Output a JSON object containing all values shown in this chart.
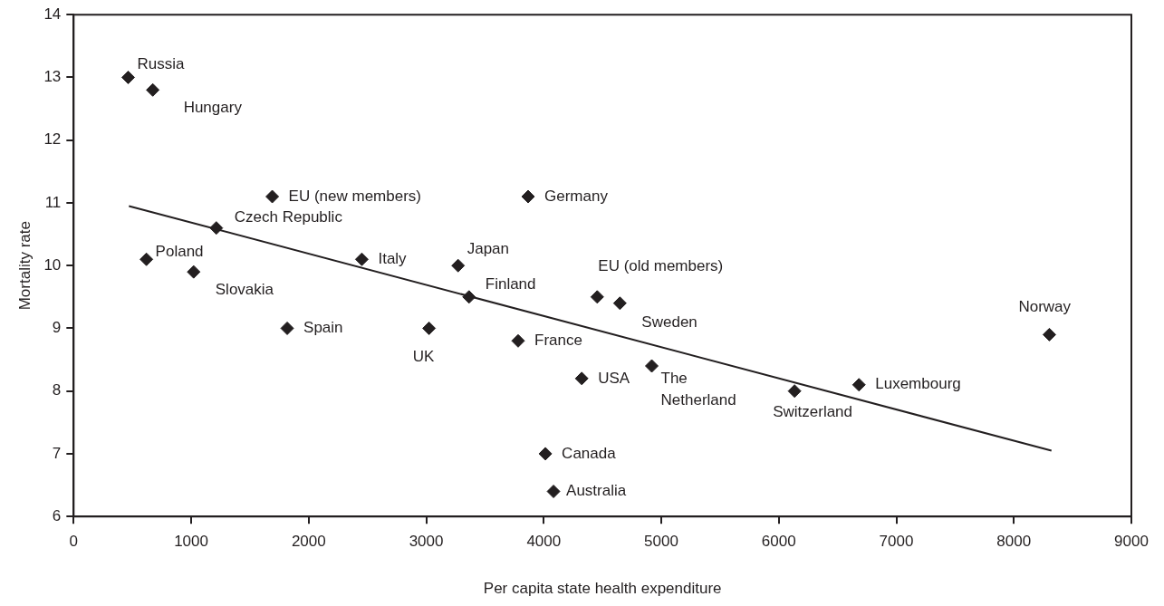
{
  "chart_data": {
    "type": "scatter",
    "xlabel": "Per capita state health expenditure",
    "ylabel": "Mortality rate",
    "xlim": [
      0,
      9000
    ],
    "xticks": [
      0,
      1000,
      2000,
      3000,
      4000,
      5000,
      6000,
      7000,
      8000,
      9000
    ],
    "ylim": [
      6,
      14
    ],
    "yticks": [
      6,
      7,
      8,
      9,
      10,
      11,
      12,
      13,
      14
    ],
    "grid": false,
    "legend": false,
    "series": [
      {
        "color": "#231f20",
        "marker": "diamond",
        "x": [
          464,
          673,
          1690,
          1214,
          619,
          1021,
          1817,
          2452,
          3867,
          3271,
          3364,
          3024,
          3782,
          4455,
          4648,
          4323,
          4919,
          4014,
          4083,
          6134,
          6682,
          8302
        ],
        "values": [
          13.0,
          12.8,
          11.1,
          10.6,
          10.1,
          9.9,
          9.0,
          10.1,
          11.1,
          10.0,
          9.5,
          9.0,
          8.8,
          9.5,
          9.4,
          8.2,
          8.4,
          7.0,
          6.4,
          8.0,
          8.1,
          8.9
        ]
      },
      {
        "type": "line",
        "color": "#231f20",
        "x": [
          470,
          8320
        ],
        "values": [
          10.95,
          7.05
        ]
      }
    ],
    "annotations": [
      {
        "text": "Russia",
        "x": 464,
        "y": 13.0
      },
      {
        "text": "Hungary",
        "x": 673,
        "y": 12.8
      },
      {
        "text": "EU (new members)",
        "x": 1690,
        "y": 11.1
      },
      {
        "text": "Czech Republic",
        "x": 1214,
        "y": 10.6
      },
      {
        "text": "Poland",
        "x": 619,
        "y": 10.1
      },
      {
        "text": "Slovakia",
        "x": 1021,
        "y": 9.9
      },
      {
        "text": "Spain",
        "x": 1817,
        "y": 9.0
      },
      {
        "text": "Italy",
        "x": 2452,
        "y": 10.1
      },
      {
        "text": "Germany",
        "x": 3867,
        "y": 11.1
      },
      {
        "text": "Japan",
        "x": 3271,
        "y": 10.0
      },
      {
        "text": "Finland",
        "x": 3364,
        "y": 9.5
      },
      {
        "text": "UK",
        "x": 3024,
        "y": 9.0
      },
      {
        "text": "France",
        "x": 3782,
        "y": 8.8
      },
      {
        "text": "EU (old members)",
        "x": 4455,
        "y": 9.5
      },
      {
        "text": "Sweden",
        "x": 4648,
        "y": 9.4
      },
      {
        "text": "USA",
        "x": 4323,
        "y": 8.2
      },
      {
        "text": "The\nNetherland",
        "x": 4919,
        "y": 8.4
      },
      {
        "text": "Canada",
        "x": 4014,
        "y": 7.0
      },
      {
        "text": "Australia",
        "x": 4083,
        "y": 6.4
      },
      {
        "text": "Switzerland",
        "x": 6134,
        "y": 8.0
      },
      {
        "text": "Luxembourg",
        "x": 6682,
        "y": 8.1
      },
      {
        "text": "Norway",
        "x": 8302,
        "y": 8.9
      }
    ]
  }
}
